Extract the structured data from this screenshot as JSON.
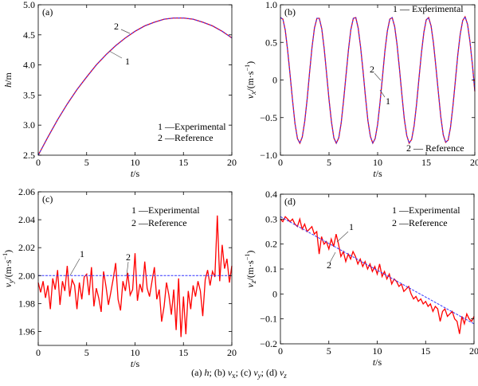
{
  "caption": {
    "parts": [
      "(a) ",
      "h",
      "; (b) ",
      "v",
      "x",
      "; (c) ",
      "v",
      "y",
      "; (d) ",
      "v",
      "z"
    ]
  },
  "colors": {
    "experimental": "#ff0000",
    "reference": "#3333ff",
    "axis": "#000000"
  },
  "chart_data": [
    {
      "type": "line",
      "panel": "(a)",
      "xlabel": {
        "var": "t",
        "unit": "/s"
      },
      "ylabel": {
        "var": "h",
        "sub": "",
        "unit": "/m",
        "sup": ""
      },
      "xlim": [
        0,
        20
      ],
      "ylim": [
        2.5,
        5.0
      ],
      "xticks": [
        "0",
        "5",
        "10",
        "15",
        "20"
      ],
      "xtick_values": [
        0,
        5,
        10,
        15,
        20
      ],
      "yticks": [
        "2.5",
        "3.0",
        "3.5",
        "4.0",
        "4.5",
        "5.0"
      ],
      "ytick_values": [
        2.5,
        3.0,
        3.5,
        4.0,
        4.5,
        5.0
      ],
      "legend": [
        "1 —Experimental",
        "2 —Reference"
      ],
      "curve_labels": [
        "1",
        "2"
      ],
      "x_start": 0,
      "x_step": 1,
      "series": [
        {
          "name": "Experimental",
          "values": [
            2.5,
            2.8,
            3.09,
            3.35,
            3.59,
            3.8,
            4.0,
            4.17,
            4.32,
            4.45,
            4.56,
            4.65,
            4.71,
            4.76,
            4.78,
            4.78,
            4.76,
            4.71,
            4.65,
            4.56,
            4.45
          ]
        },
        {
          "name": "Reference",
          "values": [
            2.5,
            2.8,
            3.09,
            3.35,
            3.59,
            3.8,
            4.0,
            4.17,
            4.32,
            4.45,
            4.56,
            4.65,
            4.71,
            4.76,
            4.78,
            4.78,
            4.76,
            4.71,
            4.65,
            4.56,
            4.45
          ]
        }
      ]
    },
    {
      "type": "line",
      "panel": "(b)",
      "xlabel": {
        "var": "t",
        "unit": "/s"
      },
      "ylabel": {
        "var": "v",
        "sub": "x",
        "unit": "/(m·s",
        "sup": "−1",
        "close": ")"
      },
      "xlim": [
        0,
        20
      ],
      "ylim": [
        -1.0,
        1.0
      ],
      "xticks": [
        "0",
        "5",
        "10",
        "15",
        "20"
      ],
      "xtick_values": [
        0,
        5,
        10,
        15,
        20
      ],
      "yticks": [
        "−1.0",
        "−0.5",
        "0",
        "0.5",
        "1.0"
      ],
      "ytick_values": [
        -1.0,
        -0.5,
        0,
        0.5,
        1.0
      ],
      "legend": [
        "1 — Experimental",
        "2 — Reference"
      ],
      "curve_labels": [
        "1",
        "2"
      ],
      "x_start": 0,
      "x_step": 0.25,
      "series": [
        {
          "name": "Experimental",
          "values": [
            0.83,
            0.81,
            0.66,
            0.39,
            0.06,
            -0.28,
            -0.58,
            -0.78,
            -0.84,
            -0.76,
            -0.55,
            -0.25,
            0.1,
            0.43,
            0.69,
            0.82,
            0.82,
            0.68,
            0.42,
            0.09,
            -0.26,
            -0.56,
            -0.77,
            -0.84,
            -0.77,
            -0.57,
            -0.27,
            0.07,
            0.4,
            0.67,
            0.82,
            0.83,
            0.69,
            0.44,
            0.12,
            -0.23,
            -0.54,
            -0.75,
            -0.84,
            -0.78,
            -0.59,
            -0.3,
            0.04,
            0.38,
            0.65,
            0.81,
            0.83,
            0.71,
            0.47,
            0.14,
            -0.2,
            -0.52,
            -0.74,
            -0.84,
            -0.79,
            -0.61,
            -0.33,
            0.02,
            0.35,
            0.63,
            0.8,
            0.83,
            0.72,
            0.49,
            0.17,
            -0.17,
            -0.49,
            -0.73,
            -0.83,
            -0.8,
            -0.63,
            -0.35,
            -0.01,
            0.33,
            0.61,
            0.79,
            0.84,
            0.74,
            0.51,
            0.2,
            -0.15
          ]
        },
        {
          "name": "Reference",
          "values": [
            0.83,
            0.81,
            0.66,
            0.39,
            0.06,
            -0.28,
            -0.58,
            -0.78,
            -0.84,
            -0.76,
            -0.55,
            -0.25,
            0.1,
            0.43,
            0.69,
            0.82,
            0.82,
            0.68,
            0.42,
            0.09,
            -0.26,
            -0.56,
            -0.77,
            -0.84,
            -0.77,
            -0.57,
            -0.27,
            0.07,
            0.4,
            0.67,
            0.82,
            0.83,
            0.69,
            0.44,
            0.12,
            -0.23,
            -0.54,
            -0.75,
            -0.84,
            -0.78,
            -0.59,
            -0.3,
            0.04,
            0.38,
            0.65,
            0.81,
            0.83,
            0.71,
            0.47,
            0.14,
            -0.2,
            -0.52,
            -0.74,
            -0.84,
            -0.79,
            -0.61,
            -0.33,
            0.02,
            0.35,
            0.63,
            0.8,
            0.83,
            0.72,
            0.49,
            0.17,
            -0.17,
            -0.49,
            -0.73,
            -0.83,
            -0.8,
            -0.63,
            -0.35,
            -0.01,
            0.33,
            0.61,
            0.79,
            0.84,
            0.74,
            0.51,
            0.2,
            -0.15
          ]
        }
      ]
    },
    {
      "type": "line",
      "panel": "(c)",
      "xlabel": {
        "var": "t",
        "unit": "/s"
      },
      "ylabel": {
        "var": "v",
        "sub": "y",
        "unit": "/(m·s",
        "sup": "−1",
        "close": ")"
      },
      "xlim": [
        0,
        20
      ],
      "ylim": [
        1.95,
        2.06
      ],
      "xticks": [
        "0",
        "5",
        "10",
        "15",
        "20"
      ],
      "xtick_values": [
        0,
        5,
        10,
        15,
        20
      ],
      "yticks": [
        "1.96",
        "1.98",
        "2.00",
        "2.02",
        "2.04",
        "2.06"
      ],
      "ytick_values": [
        1.96,
        1.98,
        2.0,
        2.02,
        2.04,
        2.06
      ],
      "legend": [
        "1 —Experimental",
        "2 —Reference"
      ],
      "curve_labels": [
        "1",
        "2"
      ],
      "x_start": 0,
      "x_step": 0.25,
      "series": [
        {
          "name": "Experimental",
          "values": [
            1.995,
            1.988,
            1.996,
            1.984,
            1.993,
            1.976,
            1.998,
            1.99,
            2.004,
            1.979,
            1.996,
            1.989,
            2.007,
            1.985,
            1.997,
            1.993,
            1.976,
            1.995,
            1.983,
            1.999,
            2.001,
            1.986,
            2.006,
            1.978,
            1.991,
            1.984,
            1.974,
            2.003,
            1.992,
            1.979,
            1.988,
            1.998,
            2.009,
            1.983,
            1.975,
            1.996,
            1.989,
            2.002,
            1.986,
            1.99,
            2.016,
            1.982,
            1.994,
            1.988,
            2.01,
            1.991,
            1.985,
            1.996,
            2.006,
            1.983,
            1.99,
            1.967,
            1.978,
            1.995,
            1.986,
            1.972,
            1.99,
            1.961,
            1.998,
            1.956,
            1.985,
            1.958,
            1.989,
            1.976,
            1.993,
            1.985,
            1.996,
            1.989,
            1.971,
            1.997,
            2.004,
            1.993,
            2.003,
            1.999,
            2.043,
            1.996,
            2.022,
            2.005,
            2.012,
            1.995,
            2.007
          ]
        },
        {
          "name": "Reference",
          "x": [
            0,
            20
          ],
          "values": [
            2.0,
            2.0
          ]
        }
      ]
    },
    {
      "type": "line",
      "panel": "(d)",
      "xlabel": {
        "var": "t",
        "unit": "/s"
      },
      "ylabel": {
        "var": "v",
        "sub": "z",
        "unit": "/(m·s",
        "sup": "−1",
        "close": ")"
      },
      "xlim": [
        0,
        20
      ],
      "ylim": [
        -0.2,
        0.4
      ],
      "xticks": [
        "0",
        "5",
        "10",
        "15",
        "20"
      ],
      "xtick_values": [
        0,
        5,
        10,
        15,
        20
      ],
      "yticks": [
        "−0.2",
        "−0.1",
        "0",
        "0.1",
        "0.2",
        "0.3",
        "0.4"
      ],
      "ytick_values": [
        -0.2,
        -0.1,
        0,
        0.1,
        0.2,
        0.3,
        0.4
      ],
      "legend": [
        "1 —Experimental",
        "2 —Reference"
      ],
      "curve_labels": [
        "1",
        "2"
      ],
      "x_start": 0,
      "x_step": 0.25,
      "series": [
        {
          "name": "Experimental",
          "values": [
            0.3,
            0.29,
            0.31,
            0.3,
            0.29,
            0.3,
            0.28,
            0.27,
            0.3,
            0.26,
            0.28,
            0.25,
            0.26,
            0.27,
            0.24,
            0.25,
            0.16,
            0.23,
            0.2,
            0.21,
            0.18,
            0.22,
            0.19,
            0.24,
            0.2,
            0.15,
            0.17,
            0.13,
            0.16,
            0.14,
            0.17,
            0.15,
            0.12,
            0.14,
            0.11,
            0.13,
            0.1,
            0.12,
            0.09,
            0.11,
            0.08,
            0.12,
            0.07,
            0.09,
            0.06,
            0.08,
            0.04,
            0.06,
            0.05,
            0.03,
            0.04,
            0.01,
            0.02,
            0.03,
            0.0,
            -0.02,
            -0.01,
            -0.03,
            -0.02,
            -0.04,
            -0.03,
            -0.05,
            -0.04,
            -0.07,
            -0.05,
            -0.06,
            -0.11,
            -0.07,
            -0.06,
            -0.09,
            -0.08,
            -0.07,
            -0.1,
            -0.11,
            -0.16,
            -0.09,
            -0.12,
            -0.08,
            -0.1,
            -0.11,
            -0.09
          ]
        },
        {
          "name": "Reference",
          "x": [
            0,
            20
          ],
          "values": [
            0.31,
            -0.12
          ]
        }
      ]
    }
  ]
}
